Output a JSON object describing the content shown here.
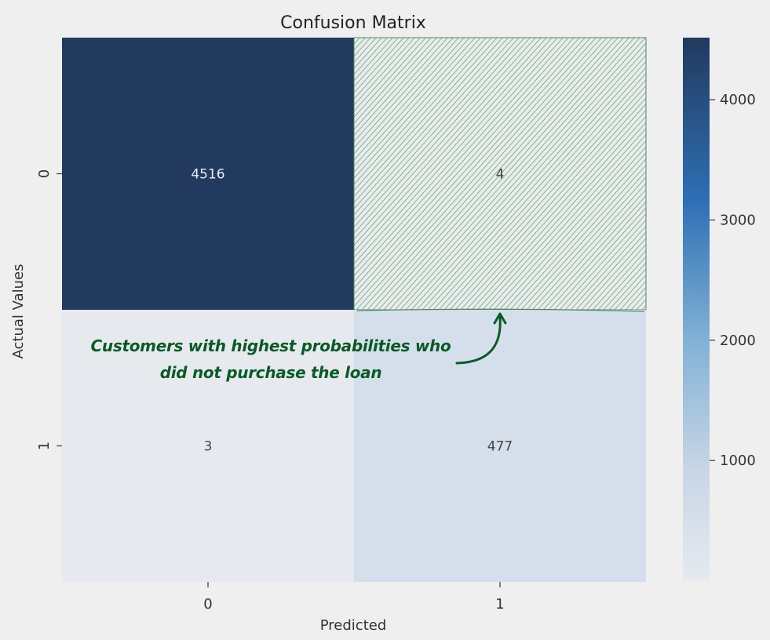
{
  "chart_data": {
    "type": "heatmap",
    "title": "Confusion Matrix",
    "xlabel": "Predicted",
    "ylabel": "Actual Values",
    "x_categories": [
      "0",
      "1"
    ],
    "y_categories": [
      "0",
      "1"
    ],
    "values": [
      [
        4516,
        4
      ],
      [
        3,
        477
      ]
    ],
    "colorbar": {
      "ticks": [
        1000,
        2000,
        3000,
        4000
      ],
      "range": [
        3,
        4516
      ],
      "colormap": "Blues"
    },
    "highlight_cell": {
      "row": 0,
      "col": 1,
      "style": "hatched",
      "color": "#4d8a5c"
    },
    "annotation": {
      "lines": [
        "Customers with highest probabilities who",
        "did not purchase the loan"
      ],
      "color": "#0b5a25"
    }
  },
  "colors": {
    "background": "#efefef",
    "high": "#223a5e",
    "low": "#e6eaef"
  }
}
